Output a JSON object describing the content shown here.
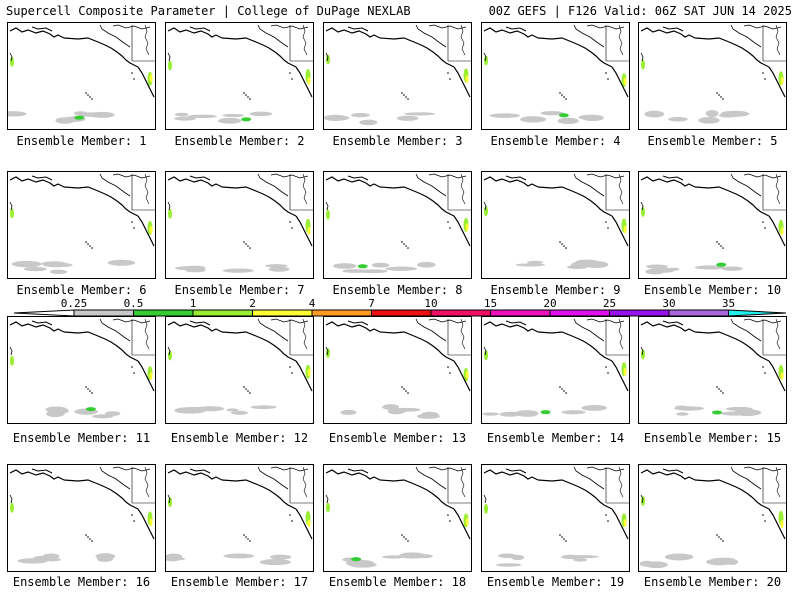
{
  "header": {
    "left": "Supercell Composite Parameter | College of DuPage NEXLAB",
    "right": "00Z GEFS | F126 Valid: 06Z SAT JUN 14 2025"
  },
  "panels": [
    {
      "label": "Ensemble Member: 1"
    },
    {
      "label": "Ensemble Member: 2"
    },
    {
      "label": "Ensemble Member: 3"
    },
    {
      "label": "Ensemble Member: 4"
    },
    {
      "label": "Ensemble Member: 5"
    },
    {
      "label": "Ensemble Member: 6"
    },
    {
      "label": "Ensemble Member: 7"
    },
    {
      "label": "Ensemble Member: 8"
    },
    {
      "label": "Ensemble Member: 9"
    },
    {
      "label": "Ensemble Member: 10"
    },
    {
      "label": "Ensemble Member: 11"
    },
    {
      "label": "Ensemble Member: 12"
    },
    {
      "label": "Ensemble Member: 13"
    },
    {
      "label": "Ensemble Member: 14"
    },
    {
      "label": "Ensemble Member: 15"
    },
    {
      "label": "Ensemble Member: 16"
    },
    {
      "label": "Ensemble Member: 17"
    },
    {
      "label": "Ensemble Member: 18"
    },
    {
      "label": "Ensemble Member: 19"
    },
    {
      "label": "Ensemble Member: 20"
    }
  ],
  "colorbar": {
    "values": [
      "0.25",
      "0.5",
      "1",
      "2",
      "4",
      "7",
      "10",
      "15",
      "20",
      "25",
      "30",
      "35"
    ],
    "colors": [
      "#c8c8c8",
      "#33cc33",
      "#99ee33",
      "#ffff33",
      "#ff9922",
      "#ee1111",
      "#ee1166",
      "#ee11bb",
      "#dd11ee",
      "#9911ee",
      "#aa66dd",
      "#22eeee"
    ],
    "colors_note": "fill colors between the printed thresholds, low to high"
  }
}
